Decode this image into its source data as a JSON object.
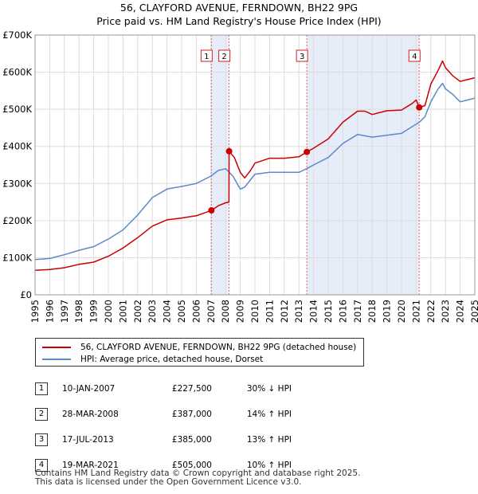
{
  "header": {
    "title": "56, CLAYFORD AVENUE, FERNDOWN, BH22 9PG",
    "subtitle": "Price paid vs. HM Land Registry's House Price Index (HPI)"
  },
  "legend": {
    "property_label": "56, CLAYFORD AVENUE, FERNDOWN, BH22 9PG (detached house)",
    "hpi_label": "HPI: Average price, detached house, Dorset"
  },
  "colors": {
    "property": "#cc0000",
    "hpi": "#5b8ac7",
    "shade": "#e6ecf8",
    "marker_line": "#e06070"
  },
  "chart_data": {
    "type": "line",
    "title": "56, CLAYFORD AVENUE, FERNDOWN, BH22 9PG",
    "xlim": [
      1995,
      2025
    ],
    "ylim": [
      0,
      700000
    ],
    "yticks": [
      0,
      100000,
      200000,
      300000,
      400000,
      500000,
      600000,
      700000
    ],
    "ytick_labels": [
      "£0",
      "£100K",
      "£200K",
      "£300K",
      "£400K",
      "£500K",
      "£600K",
      "£700K"
    ],
    "xticks": [
      "1995",
      "1996",
      "1997",
      "1998",
      "1999",
      "2000",
      "2001",
      "2002",
      "2003",
      "2004",
      "2005",
      "2006",
      "2007",
      "2008",
      "2009",
      "2010",
      "2011",
      "2012",
      "2013",
      "2014",
      "2015",
      "2016",
      "2017",
      "2018",
      "2019",
      "2020",
      "2021",
      "2022",
      "2023",
      "2024",
      "2025"
    ],
    "shaded_ranges": [
      [
        2007.03,
        2008.24
      ],
      [
        2013.54,
        2021.21
      ]
    ],
    "series": [
      {
        "name": "56, CLAYFORD AVENUE, FERNDOWN, BH22 9PG (detached house)",
        "x": [
          1995.0,
          1996.0,
          1997.0,
          1998.0,
          1999.0,
          2000.0,
          2001.0,
          2002.0,
          2003.0,
          2004.0,
          2005.0,
          2006.0,
          2007.03,
          2007.5,
          2008.0,
          2008.23,
          2008.24,
          2008.6,
          2009.0,
          2009.3,
          2009.7,
          2010.0,
          2011.0,
          2012.0,
          2013.0,
          2013.54,
          2014.0,
          2015.0,
          2016.0,
          2017.0,
          2017.5,
          2018.0,
          2019.0,
          2020.0,
          2020.7,
          2021.0,
          2021.21,
          2021.6,
          2022.0,
          2022.5,
          2022.8,
          2023.0,
          2023.5,
          2024.0,
          2024.5,
          2025.0
        ],
        "y": [
          66000,
          68000,
          73000,
          82000,
          88000,
          104000,
          126000,
          154000,
          185000,
          202000,
          207000,
          213000,
          227500,
          240000,
          248000,
          250000,
          387000,
          370000,
          330000,
          315000,
          335000,
          355000,
          368000,
          368000,
          372000,
          385000,
          395000,
          420000,
          465000,
          495000,
          495000,
          486000,
          496000,
          498000,
          515000,
          525000,
          505000,
          510000,
          568000,
          605000,
          630000,
          612000,
          590000,
          575000,
          580000,
          585000
        ]
      },
      {
        "name": "HPI: Average price, detached house, Dorset",
        "x": [
          1995.0,
          1996.0,
          1997.0,
          1998.0,
          1999.0,
          2000.0,
          2001.0,
          2002.0,
          2003.0,
          2004.0,
          2005.0,
          2006.0,
          2007.0,
          2007.5,
          2008.0,
          2008.5,
          2009.0,
          2009.3,
          2009.7,
          2010.0,
          2011.0,
          2012.0,
          2013.0,
          2013.54,
          2014.0,
          2015.0,
          2016.0,
          2017.0,
          2018.0,
          2019.0,
          2020.0,
          2020.8,
          2021.21,
          2021.6,
          2022.0,
          2022.5,
          2022.8,
          2023.0,
          2023.5,
          2024.0,
          2024.5,
          2025.0
        ],
        "y": [
          95000,
          98000,
          108000,
          120000,
          130000,
          150000,
          175000,
          215000,
          262000,
          285000,
          292000,
          300000,
          320000,
          335000,
          340000,
          320000,
          285000,
          290000,
          310000,
          325000,
          330000,
          330000,
          330000,
          340000,
          350000,
          370000,
          408000,
          432000,
          425000,
          430000,
          435000,
          455000,
          465000,
          480000,
          520000,
          555000,
          570000,
          555000,
          540000,
          520000,
          525000,
          530000
        ]
      }
    ],
    "sales": [
      {
        "label": "1",
        "x": 2007.03,
        "price": 227500
      },
      {
        "label": "2",
        "x": 2008.24,
        "price": 387000
      },
      {
        "label": "3",
        "x": 2013.54,
        "price": 385000
      },
      {
        "label": "4",
        "x": 2021.21,
        "price": 505000
      }
    ]
  },
  "transactions": [
    {
      "num": "1",
      "date": "10-JAN-2007",
      "price": "£227,500",
      "hpi": "30% ↓ HPI"
    },
    {
      "num": "2",
      "date": "28-MAR-2008",
      "price": "£387,000",
      "hpi": "14% ↑ HPI"
    },
    {
      "num": "3",
      "date": "17-JUL-2013",
      "price": "£385,000",
      "hpi": "13% ↑ HPI"
    },
    {
      "num": "4",
      "date": "19-MAR-2021",
      "price": "£505,000",
      "hpi": "10% ↑ HPI"
    }
  ],
  "footer": {
    "line1": "Contains HM Land Registry data © Crown copyright and database right 2025.",
    "line2": "This data is licensed under the Open Government Licence v3.0."
  }
}
